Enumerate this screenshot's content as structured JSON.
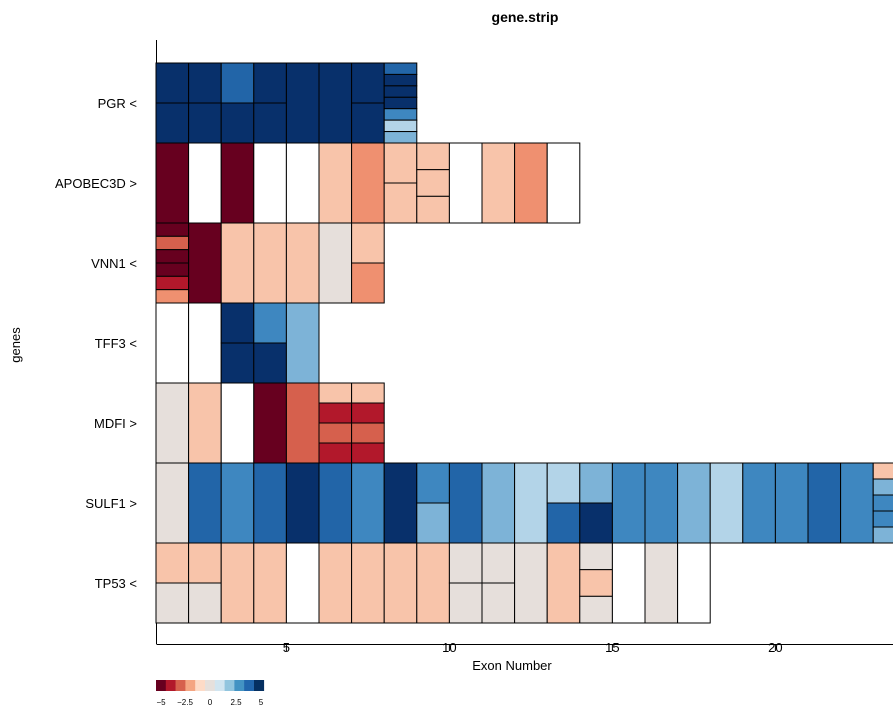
{
  "chart_data": {
    "type": "heatmap",
    "title": "gene.strip",
    "xlabel": "Exon Number",
    "ylabel": "genes",
    "xlim": [
      1,
      24
    ],
    "x_ticks": [
      "5",
      "10",
      "15",
      "20"
    ],
    "legend": {
      "tick_labels": [
        "−5",
        "−2.5",
        "0",
        "2.5",
        "5"
      ],
      "colors": [
        "#67001f",
        "#b2182b",
        "#d6604d",
        "#f4a582",
        "#fddbc7",
        "#e6e0dc",
        "#d1e5f0",
        "#92c5de",
        "#4393c3",
        "#2166ac",
        "#053061"
      ]
    },
    "palette": {
      "-5": "#67001f",
      "-4": "#b2182b",
      "-3": "#d6604d",
      "-2": "#ef9070",
      "-1": "#f8c4aa",
      "0": "#e6dfdb",
      "1": "#b3d4e8",
      "2": "#7db3d7",
      "3": "#3e87c0",
      "4": "#2265a8",
      "5": "#08306b",
      "none": "#ffffff"
    },
    "genes": [
      {
        "label": "PGR <",
        "exons": [
          {
            "exon": 1,
            "levels": [
              5,
              5
            ]
          },
          {
            "exon": 2,
            "levels": [
              5,
              5
            ]
          },
          {
            "exon": 3,
            "levels": [
              4,
              5
            ]
          },
          {
            "exon": 4,
            "levels": [
              5,
              5
            ]
          },
          {
            "exon": 5,
            "levels": [
              5
            ]
          },
          {
            "exon": 6,
            "levels": [
              5
            ]
          },
          {
            "exon": 7,
            "levels": [
              5,
              5
            ]
          },
          {
            "exon": 8,
            "levels": [
              4,
              5,
              5,
              5,
              3,
              1,
              2
            ]
          }
        ]
      },
      {
        "label": "APOBEC3D >",
        "exons": [
          {
            "exon": 1,
            "levels": [
              -5
            ]
          },
          {
            "exon": 2,
            "levels": [
              "none"
            ]
          },
          {
            "exon": 3,
            "levels": [
              -5
            ]
          },
          {
            "exon": 4,
            "levels": [
              "none"
            ]
          },
          {
            "exon": 5,
            "levels": [
              "none"
            ]
          },
          {
            "exon": 6,
            "levels": [
              -1
            ]
          },
          {
            "exon": 7,
            "levels": [
              -2
            ]
          },
          {
            "exon": 8,
            "levels": [
              -1,
              -1
            ]
          },
          {
            "exon": 9,
            "levels": [
              -1,
              -1,
              -1
            ]
          },
          {
            "exon": 10,
            "levels": [
              "none"
            ]
          },
          {
            "exon": 11,
            "levels": [
              -1
            ]
          },
          {
            "exon": 12,
            "levels": [
              -2
            ]
          },
          {
            "exon": 13,
            "levels": [
              "none"
            ]
          }
        ]
      },
      {
        "label": "VNN1 <",
        "exons": [
          {
            "exon": 1,
            "levels": [
              -5,
              -3,
              -5,
              -5,
              -4,
              -2
            ]
          },
          {
            "exon": 2,
            "levels": [
              -5
            ]
          },
          {
            "exon": 3,
            "levels": [
              -1
            ]
          },
          {
            "exon": 4,
            "levels": [
              -1
            ]
          },
          {
            "exon": 5,
            "levels": [
              -1
            ]
          },
          {
            "exon": 6,
            "levels": [
              0
            ]
          },
          {
            "exon": 7,
            "levels": [
              -1,
              -2
            ]
          }
        ]
      },
      {
        "label": "TFF3 <",
        "exons": [
          {
            "exon": 1,
            "levels": [
              "none"
            ]
          },
          {
            "exon": 2,
            "levels": [
              "none"
            ]
          },
          {
            "exon": 3,
            "levels": [
              5,
              5
            ]
          },
          {
            "exon": 4,
            "levels": [
              3,
              5
            ]
          },
          {
            "exon": 5,
            "levels": [
              2
            ]
          }
        ]
      },
      {
        "label": "MDFI >",
        "exons": [
          {
            "exon": 1,
            "levels": [
              0
            ]
          },
          {
            "exon": 2,
            "levels": [
              -1
            ]
          },
          {
            "exon": 3,
            "levels": [
              "none"
            ]
          },
          {
            "exon": 4,
            "levels": [
              -5
            ]
          },
          {
            "exon": 5,
            "levels": [
              -3
            ]
          },
          {
            "exon": 6,
            "levels": [
              -1,
              -4,
              -3,
              -4
            ]
          },
          {
            "exon": 7,
            "levels": [
              -1,
              -4,
              -3,
              -4
            ]
          }
        ]
      },
      {
        "label": "SULF1 >",
        "exons": [
          {
            "exon": 1,
            "levels": [
              0
            ]
          },
          {
            "exon": 2,
            "levels": [
              4
            ]
          },
          {
            "exon": 3,
            "levels": [
              3
            ]
          },
          {
            "exon": 4,
            "levels": [
              4
            ]
          },
          {
            "exon": 5,
            "levels": [
              5
            ]
          },
          {
            "exon": 6,
            "levels": [
              4
            ]
          },
          {
            "exon": 7,
            "levels": [
              3
            ]
          },
          {
            "exon": 8,
            "levels": [
              5
            ]
          },
          {
            "exon": 9,
            "levels": [
              3,
              2
            ]
          },
          {
            "exon": 10,
            "levels": [
              4
            ]
          },
          {
            "exon": 11,
            "levels": [
              2
            ]
          },
          {
            "exon": 12,
            "levels": [
              1
            ]
          },
          {
            "exon": 13,
            "levels": [
              1,
              4
            ]
          },
          {
            "exon": 14,
            "levels": [
              2,
              5
            ]
          },
          {
            "exon": 15,
            "levels": [
              3
            ]
          },
          {
            "exon": 16,
            "levels": [
              3
            ]
          },
          {
            "exon": 17,
            "levels": [
              2
            ]
          },
          {
            "exon": 18,
            "levels": [
              1
            ]
          },
          {
            "exon": 19,
            "levels": [
              3
            ]
          },
          {
            "exon": 20,
            "levels": [
              3
            ]
          },
          {
            "exon": 21,
            "levels": [
              4
            ]
          },
          {
            "exon": 22,
            "levels": [
              3
            ]
          },
          {
            "exon": 23,
            "levels": [
              -1,
              2,
              3,
              3,
              2
            ]
          }
        ]
      },
      {
        "label": "TP53 <",
        "exons": [
          {
            "exon": 1,
            "levels": [
              -1,
              0
            ]
          },
          {
            "exon": 2,
            "levels": [
              -1,
              0
            ]
          },
          {
            "exon": 3,
            "levels": [
              -1
            ]
          },
          {
            "exon": 4,
            "levels": [
              -1
            ]
          },
          {
            "exon": 5,
            "levels": [
              "none"
            ]
          },
          {
            "exon": 6,
            "levels": [
              -1
            ]
          },
          {
            "exon": 7,
            "levels": [
              -1
            ]
          },
          {
            "exon": 8,
            "levels": [
              -1
            ]
          },
          {
            "exon": 9,
            "levels": [
              -1
            ]
          },
          {
            "exon": 10,
            "levels": [
              0,
              0
            ]
          },
          {
            "exon": 11,
            "levels": [
              0,
              0
            ]
          },
          {
            "exon": 12,
            "levels": [
              0
            ]
          },
          {
            "exon": 13,
            "levels": [
              -1
            ]
          },
          {
            "exon": 14,
            "levels": [
              0,
              -1,
              0
            ]
          },
          {
            "exon": 15,
            "levels": [
              "none"
            ]
          },
          {
            "exon": 16,
            "levels": [
              0
            ]
          },
          {
            "exon": 17,
            "levels": [
              "none"
            ]
          }
        ]
      }
    ]
  }
}
